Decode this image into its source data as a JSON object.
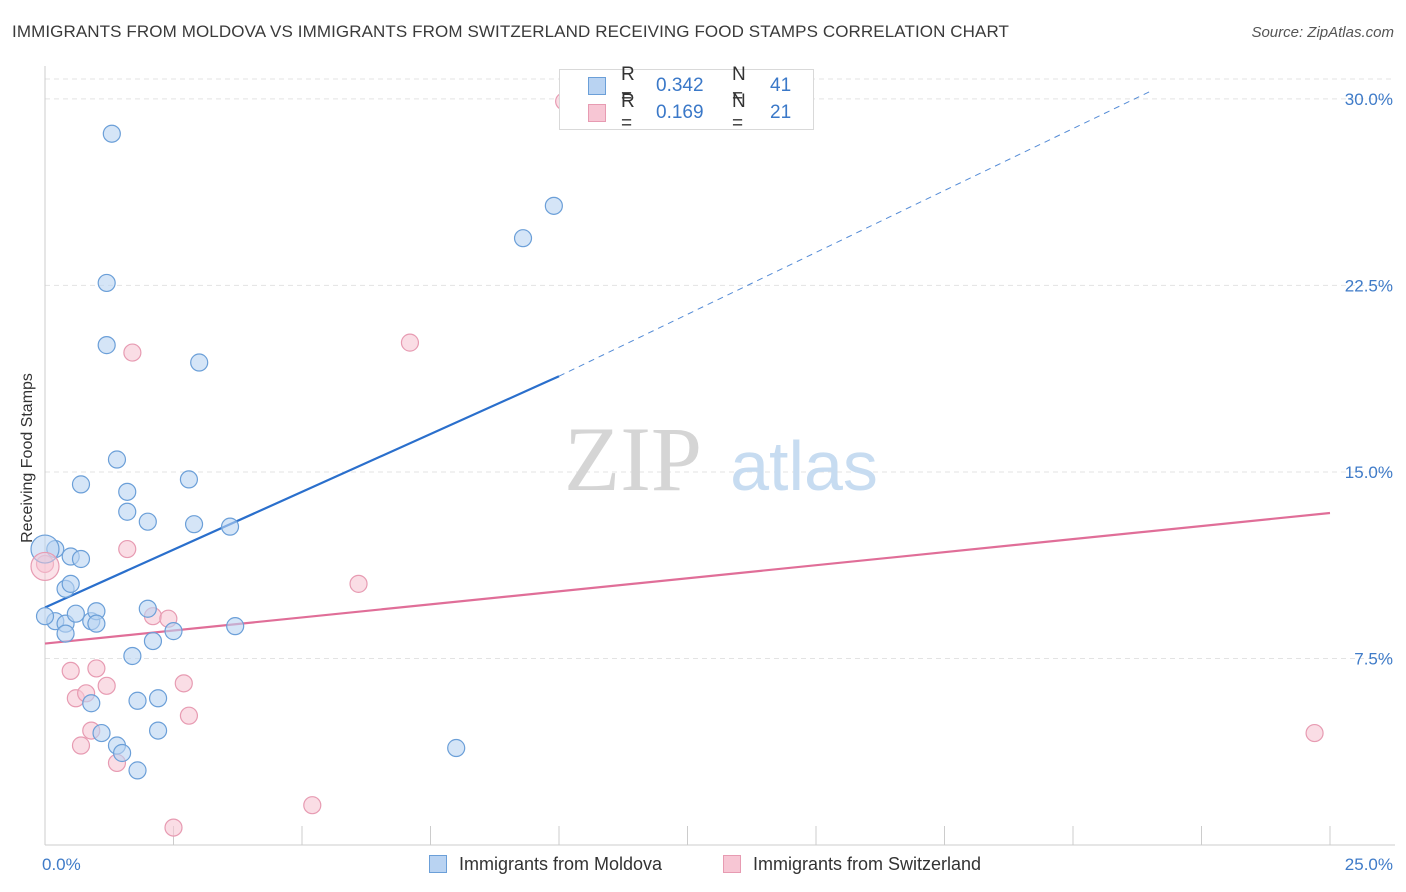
{
  "header": {
    "title": "IMMIGRANTS FROM MOLDOVA VS IMMIGRANTS FROM SWITZERLAND RECEIVING FOOD STAMPS CORRELATION CHART",
    "source": "Source: ZipAtlas.com"
  },
  "watermark": {
    "zip": "ZIP",
    "atlas": "atlas"
  },
  "legend": {
    "rows": [
      {
        "r_label": "R =",
        "r_value": "0.342",
        "n_label": "N =",
        "n_value": "41"
      },
      {
        "r_label": "R =",
        "r_value": "0.169",
        "n_label": "N =",
        "n_value": "21"
      }
    ]
  },
  "bottom_legend": {
    "moldova": "Immigrants from Moldova",
    "switzerland": "Immigrants from Switzerland"
  },
  "colors": {
    "moldova_fill": "#b9d3f2",
    "moldova_stroke": "#6b9fd8",
    "moldova_line": "#2a6fcc",
    "switzerland_fill": "#f7c6d4",
    "switzerland_stroke": "#e79bb2",
    "switzerland_line": "#e06e98",
    "tick_text": "#3f7bc8",
    "grid": "#e3e3e3"
  },
  "chart_data": {
    "type": "scatter",
    "title": "IMMIGRANTS FROM MOLDOVA VS IMMIGRANTS FROM SWITZERLAND RECEIVING FOOD STAMPS CORRELATION CHART",
    "xlabel": "",
    "ylabel": "Receiving Food Stamps",
    "xlim": [
      0,
      25
    ],
    "ylim": [
      0,
      30.8
    ],
    "x_ticks": [
      0,
      25
    ],
    "x_tick_labels": [
      "0.0%",
      "25.0%"
    ],
    "y_ticks": [
      7.5,
      15.0,
      22.5,
      30.0
    ],
    "y_tick_labels": [
      "7.5%",
      "15.0%",
      "22.5%",
      "30.0%"
    ],
    "grid": true,
    "legend_position": "top-center",
    "series": [
      {
        "name": "Immigrants from Moldova",
        "points": [
          [
            1.3,
            28.6
          ],
          [
            1.2,
            22.6
          ],
          [
            1.2,
            20.1
          ],
          [
            3.0,
            19.4
          ],
          [
            9.3,
            24.4
          ],
          [
            9.9,
            25.7
          ],
          [
            1.4,
            15.5
          ],
          [
            0.7,
            14.5
          ],
          [
            1.6,
            14.2
          ],
          [
            2.8,
            14.7
          ],
          [
            1.6,
            13.4
          ],
          [
            2.0,
            13.0
          ],
          [
            2.9,
            12.9
          ],
          [
            3.6,
            12.8
          ],
          [
            0.2,
            11.9
          ],
          [
            0.5,
            11.6
          ],
          [
            0.7,
            11.5
          ],
          [
            0.4,
            10.3
          ],
          [
            0.5,
            10.5
          ],
          [
            0.2,
            9.0
          ],
          [
            0.4,
            8.9
          ],
          [
            0.6,
            9.3
          ],
          [
            0.9,
            9.0
          ],
          [
            1.0,
            9.4
          ],
          [
            1.0,
            8.9
          ],
          [
            0.4,
            8.5
          ],
          [
            2.0,
            9.5
          ],
          [
            2.5,
            8.6
          ],
          [
            2.1,
            8.2
          ],
          [
            3.7,
            8.8
          ],
          [
            1.7,
            7.6
          ],
          [
            0.9,
            5.7
          ],
          [
            1.8,
            5.8
          ],
          [
            2.2,
            5.9
          ],
          [
            1.1,
            4.5
          ],
          [
            2.2,
            4.6
          ],
          [
            1.4,
            4.0
          ],
          [
            1.5,
            3.7
          ],
          [
            1.8,
            3.0
          ],
          [
            8.0,
            3.9
          ],
          [
            0.0,
            9.2
          ]
        ]
      },
      {
        "name": "Immigrants from Switzerland",
        "points": [
          [
            10.1,
            29.9
          ],
          [
            7.1,
            20.2
          ],
          [
            1.7,
            19.8
          ],
          [
            0.0,
            11.3
          ],
          [
            1.6,
            11.9
          ],
          [
            6.1,
            10.5
          ],
          [
            0.5,
            7.0
          ],
          [
            1.0,
            7.1
          ],
          [
            2.1,
            9.2
          ],
          [
            2.4,
            9.1
          ],
          [
            0.6,
            5.9
          ],
          [
            0.8,
            6.1
          ],
          [
            1.2,
            6.4
          ],
          [
            2.7,
            6.5
          ],
          [
            2.8,
            5.2
          ],
          [
            0.9,
            4.6
          ],
          [
            0.7,
            4.0
          ],
          [
            1.4,
            3.3
          ],
          [
            2.5,
            0.7
          ],
          [
            5.2,
            1.6
          ],
          [
            24.7,
            4.5
          ]
        ]
      }
    ],
    "trend_lines": [
      {
        "series": "Immigrants from Moldova",
        "x": [
          0,
          10.0
        ],
        "y": [
          9.55,
          18.85
        ],
        "dashed_extension_to_x": 21.5,
        "dashed_extension_y": 30.3
      },
      {
        "series": "Immigrants from Switzerland",
        "x": [
          0,
          25
        ],
        "y": [
          8.1,
          13.35
        ]
      }
    ]
  }
}
